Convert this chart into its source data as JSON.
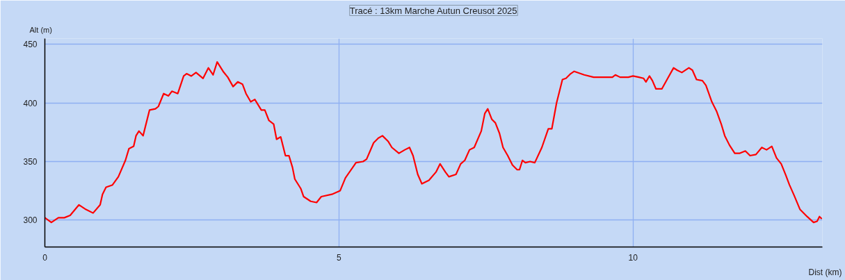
{
  "chart_data": {
    "type": "line",
    "title": "Tracé : 13km Marche Autun Creusot 2025",
    "xlabel": "Dist (km)",
    "ylabel": "Alt (m)",
    "xlim": [
      0,
      13.22
    ],
    "ylim": [
      277,
      455
    ],
    "xticks": [
      0,
      5,
      10
    ],
    "yticks": [
      300,
      350,
      400,
      450
    ],
    "grid": true,
    "marker": "none",
    "line_style": "solid",
    "series": [
      {
        "color": "#ff0000",
        "x": [
          0,
          0.11,
          0.23,
          0.33,
          0.43,
          0.58,
          0.7,
          0.82,
          0.94,
          0.98,
          1.04,
          1.15,
          1.25,
          1.37,
          1.43,
          1.51,
          1.55,
          1.6,
          1.67,
          1.78,
          1.88,
          1.93,
          2.02,
          2.1,
          2.16,
          2.26,
          2.36,
          2.41,
          2.49,
          2.57,
          2.69,
          2.78,
          2.86,
          2.93,
          3.03,
          3.11,
          3.2,
          3.28,
          3.36,
          3.42,
          3.5,
          3.57,
          3.68,
          3.74,
          3.81,
          3.89,
          3.94,
          4.01,
          4.09,
          4.15,
          4.21,
          4.25,
          4.35,
          4.4,
          4.52,
          4.62,
          4.7,
          4.88,
          5.02,
          5.11,
          5.29,
          5.41,
          5.47,
          5.59,
          5.67,
          5.74,
          5.84,
          5.9,
          6.02,
          6.12,
          6.2,
          6.26,
          6.34,
          6.41,
          6.53,
          6.65,
          6.72,
          6.81,
          6.87,
          6.99,
          7.07,
          7.14,
          7.22,
          7.3,
          7.42,
          7.48,
          7.53,
          7.6,
          7.66,
          7.73,
          7.79,
          7.87,
          7.95,
          8.03,
          8.07,
          8.12,
          8.17,
          8.25,
          8.33,
          8.45,
          8.56,
          8.62,
          8.7,
          8.8,
          8.86,
          8.94,
          9.0,
          9.17,
          9.33,
          9.5,
          9.65,
          9.7,
          9.78,
          9.92,
          10.0,
          10.1,
          10.18,
          10.22,
          10.28,
          10.33,
          10.39,
          10.49,
          10.59,
          10.69,
          10.75,
          10.83,
          10.95,
          11.01,
          11.08,
          11.18,
          11.24,
          11.34,
          11.42,
          11.5,
          11.56,
          11.64,
          11.73,
          11.81,
          11.91,
          11.99,
          12.09,
          12.19,
          12.27,
          12.36,
          12.44,
          12.52,
          12.6,
          12.66,
          12.74,
          12.84,
          12.96,
          13.07,
          13.13,
          13.17,
          13.21
        ],
        "values": [
          302,
          298,
          302,
          302,
          304,
          313,
          309,
          306,
          313,
          322,
          328,
          330,
          337,
          351,
          361,
          363,
          372,
          376,
          372,
          394,
          395,
          397,
          408,
          406,
          410,
          408,
          423,
          425,
          423,
          426,
          421,
          430,
          424,
          435,
          427,
          422,
          414,
          418,
          416,
          408,
          401,
          403,
          394,
          394,
          385,
          382,
          369,
          371,
          355,
          355,
          345,
          335,
          327,
          320,
          316,
          315,
          320,
          322,
          325,
          336,
          349,
          350,
          352,
          366,
          370,
          372,
          367,
          362,
          357,
          360,
          362,
          355,
          339,
          331,
          334,
          341,
          348,
          341,
          337,
          339,
          348,
          351,
          360,
          362,
          376,
          391,
          395,
          386,
          383,
          374,
          362,
          355,
          347,
          343,
          343,
          351,
          349,
          350,
          349,
          362,
          378,
          378,
          400,
          420,
          421,
          425,
          427,
          424,
          422,
          422,
          422,
          424,
          422,
          422,
          423,
          422,
          421,
          418,
          423,
          419,
          412,
          412,
          421,
          430,
          428,
          426,
          430,
          428,
          420,
          419,
          415,
          401,
          393,
          382,
          372,
          364,
          357,
          357,
          359,
          355,
          356,
          362,
          360,
          363,
          353,
          348,
          338,
          330,
          321,
          309,
          303,
          298,
          299,
          303,
          301
        ]
      }
    ]
  }
}
